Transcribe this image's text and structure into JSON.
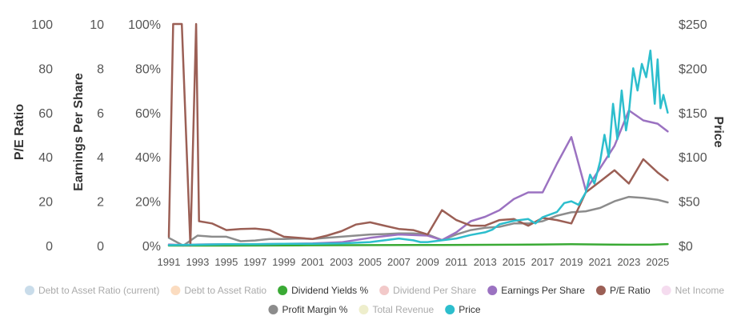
{
  "chart_data": {
    "type": "line",
    "x_axis": {
      "tick_labels": [
        "1991",
        "1993",
        "1995",
        "1997",
        "1999",
        "2001",
        "2003",
        "2005",
        "2007",
        "2009",
        "2011",
        "2013",
        "2015",
        "2017",
        "2019",
        "2021",
        "2023",
        "2025"
      ],
      "range": [
        1991,
        2025.9
      ]
    },
    "y_axes": [
      {
        "id": "pe",
        "title": "P/E Ratio",
        "range": [
          0,
          100
        ],
        "tick_labels": [
          "0",
          "20",
          "40",
          "60",
          "80",
          "100"
        ]
      },
      {
        "id": "eps",
        "title": "Earnings Per Share",
        "range": [
          0,
          10
        ],
        "tick_labels": [
          "0",
          "2",
          "4",
          "6",
          "8",
          "10"
        ]
      },
      {
        "id": "pct",
        "title": "",
        "range": [
          0,
          100
        ],
        "tick_labels": [
          "0%",
          "20%",
          "40%",
          "60%",
          "80%",
          "100%"
        ]
      },
      {
        "id": "price",
        "title": "Price",
        "range": [
          0,
          250
        ],
        "tick_labels": [
          "$0",
          "$50",
          "$100",
          "$150",
          "$200",
          "$250"
        ]
      }
    ],
    "grid": false,
    "legend_position": "bottom",
    "legend": [
      {
        "label": "Debt to Asset Ratio (current)",
        "color": "#c9dcea",
        "active": false
      },
      {
        "label": "Debt to Asset Ratio",
        "color": "#fbdcc0",
        "active": false
      },
      {
        "label": "Dividend Yields %",
        "color": "#3aaa35",
        "active": true
      },
      {
        "label": "Dividend Per Share",
        "color": "#f2c9c9",
        "active": false
      },
      {
        "label": "Earnings Per Share",
        "color": "#9b72c1",
        "active": true
      },
      {
        "label": "P/E Ratio",
        "color": "#9b5f55",
        "active": true
      },
      {
        "label": "Net Income",
        "color": "#f5dcef",
        "active": false
      },
      {
        "label": "Profit Margin %",
        "color": "#8c8c8c",
        "active": true
      },
      {
        "label": "Total Revenue",
        "color": "#eeeecc",
        "active": false
      },
      {
        "label": "Price",
        "color": "#2dbecd",
        "active": true
      }
    ],
    "series": [
      {
        "name": "P/E Ratio",
        "axis": "pe",
        "color": "#9b5f55",
        "x": [
          1991,
          1991.3,
          1991.9,
          1992.5,
          1992.9,
          1993.1,
          1994,
          1995,
          1996,
          1997,
          1998,
          1999,
          2000,
          2001,
          2002,
          2003,
          2004,
          2005,
          2006,
          2007,
          2008,
          2009,
          2010,
          2011,
          2012,
          2013,
          2014,
          2015,
          2016,
          2017,
          2018,
          2019,
          2020,
          2021,
          2022,
          2023,
          2024,
          2025,
          2025.7
        ],
        "y": [
          4,
          100,
          100,
          0,
          100,
          11,
          10,
          7,
          7.5,
          7.7,
          7,
          4,
          3.5,
          3,
          4.5,
          6.5,
          9.5,
          10.5,
          9,
          7.5,
          7,
          5,
          16,
          11.5,
          9,
          9,
          11.5,
          12,
          9,
          12.5,
          11.5,
          10,
          24,
          29,
          34,
          28,
          39,
          33,
          29.5
        ]
      },
      {
        "name": "Earnings Per Share",
        "axis": "eps",
        "color": "#9b72c1",
        "x": [
          1991,
          1992,
          1993,
          1995,
          1997,
          1999,
          2001,
          2003,
          2005,
          2007,
          2009,
          2010,
          2011,
          2012,
          2013,
          2014,
          2015,
          2016,
          2017,
          2018,
          2019,
          2020,
          2021,
          2022,
          2023,
          2024,
          2025,
          2025.7
        ],
        "y": [
          0.05,
          0.02,
          0.05,
          0.06,
          0.06,
          0.08,
          0.1,
          0.15,
          0.35,
          0.5,
          0.45,
          0.25,
          0.6,
          1.1,
          1.3,
          1.6,
          2.1,
          2.4,
          2.4,
          3.7,
          4.9,
          2.5,
          3.5,
          4.5,
          6.1,
          5.65,
          5.5,
          5.15
        ]
      },
      {
        "name": "Profit Margin %",
        "axis": "pct",
        "color": "#8c8c8c",
        "x": [
          1991,
          1992,
          1993,
          1994,
          1995,
          1996,
          1997,
          1998,
          1999,
          2000,
          2001,
          2002,
          2003,
          2004,
          2005,
          2006,
          2007,
          2008,
          2009,
          2010,
          2011,
          2012,
          2013,
          2014,
          2015,
          2016,
          2017,
          2018,
          2019,
          2020,
          2021,
          2022,
          2023,
          2024,
          2025,
          2025.7
        ],
        "y": [
          3.5,
          0,
          4.5,
          4,
          4,
          2,
          2.3,
          3,
          3,
          3.2,
          3,
          3.5,
          4,
          4.5,
          5,
          5.2,
          5.5,
          5.5,
          5,
          2.5,
          5,
          7,
          8,
          8.5,
          10,
          10,
          11,
          13.5,
          15,
          15.5,
          17,
          20,
          22,
          21.5,
          20.7,
          19.5
        ]
      },
      {
        "name": "Dividend Yields %",
        "axis": "pct",
        "color": "#3aaa35",
        "x": [
          1991,
          1995,
          2000,
          2005,
          2010,
          2015,
          2017,
          2019,
          2021,
          2023,
          2024.5,
          2025.7
        ],
        "y": [
          0,
          0,
          0.1,
          0.2,
          0.3,
          0.4,
          0.5,
          0.6,
          0.5,
          0.4,
          0.4,
          0.7
        ]
      },
      {
        "name": "Price",
        "axis": "price",
        "color": "#2dbecd",
        "x": [
          1991,
          1993,
          1995,
          1997,
          1999,
          2001,
          2003,
          2005,
          2006,
          2007,
          2008,
          2008.5,
          2009,
          2010,
          2011,
          2012,
          2013,
          2013.5,
          2014,
          2015,
          2016,
          2016.5,
          2017,
          2018,
          2018.5,
          2019,
          2019.5,
          2020,
          2020.3,
          2020.6,
          2021,
          2021.3,
          2021.6,
          2021.9,
          2022.2,
          2022.5,
          2022.8,
          2023,
          2023.3,
          2023.6,
          2023.9,
          2024.2,
          2024.5,
          2024.8,
          2025,
          2025.2,
          2025.4,
          2025.7
        ],
        "y": [
          0.5,
          1,
          1.5,
          1.5,
          2,
          2,
          2.5,
          4,
          6,
          8,
          6,
          4,
          4,
          6,
          8,
          12,
          15,
          18,
          24,
          28,
          30,
          25,
          32,
          38,
          48,
          50,
          46,
          60,
          80,
          70,
          95,
          125,
          100,
          160,
          120,
          175,
          130,
          150,
          200,
          175,
          205,
          190,
          220,
          160,
          210,
          155,
          170,
          150
        ]
      }
    ]
  }
}
